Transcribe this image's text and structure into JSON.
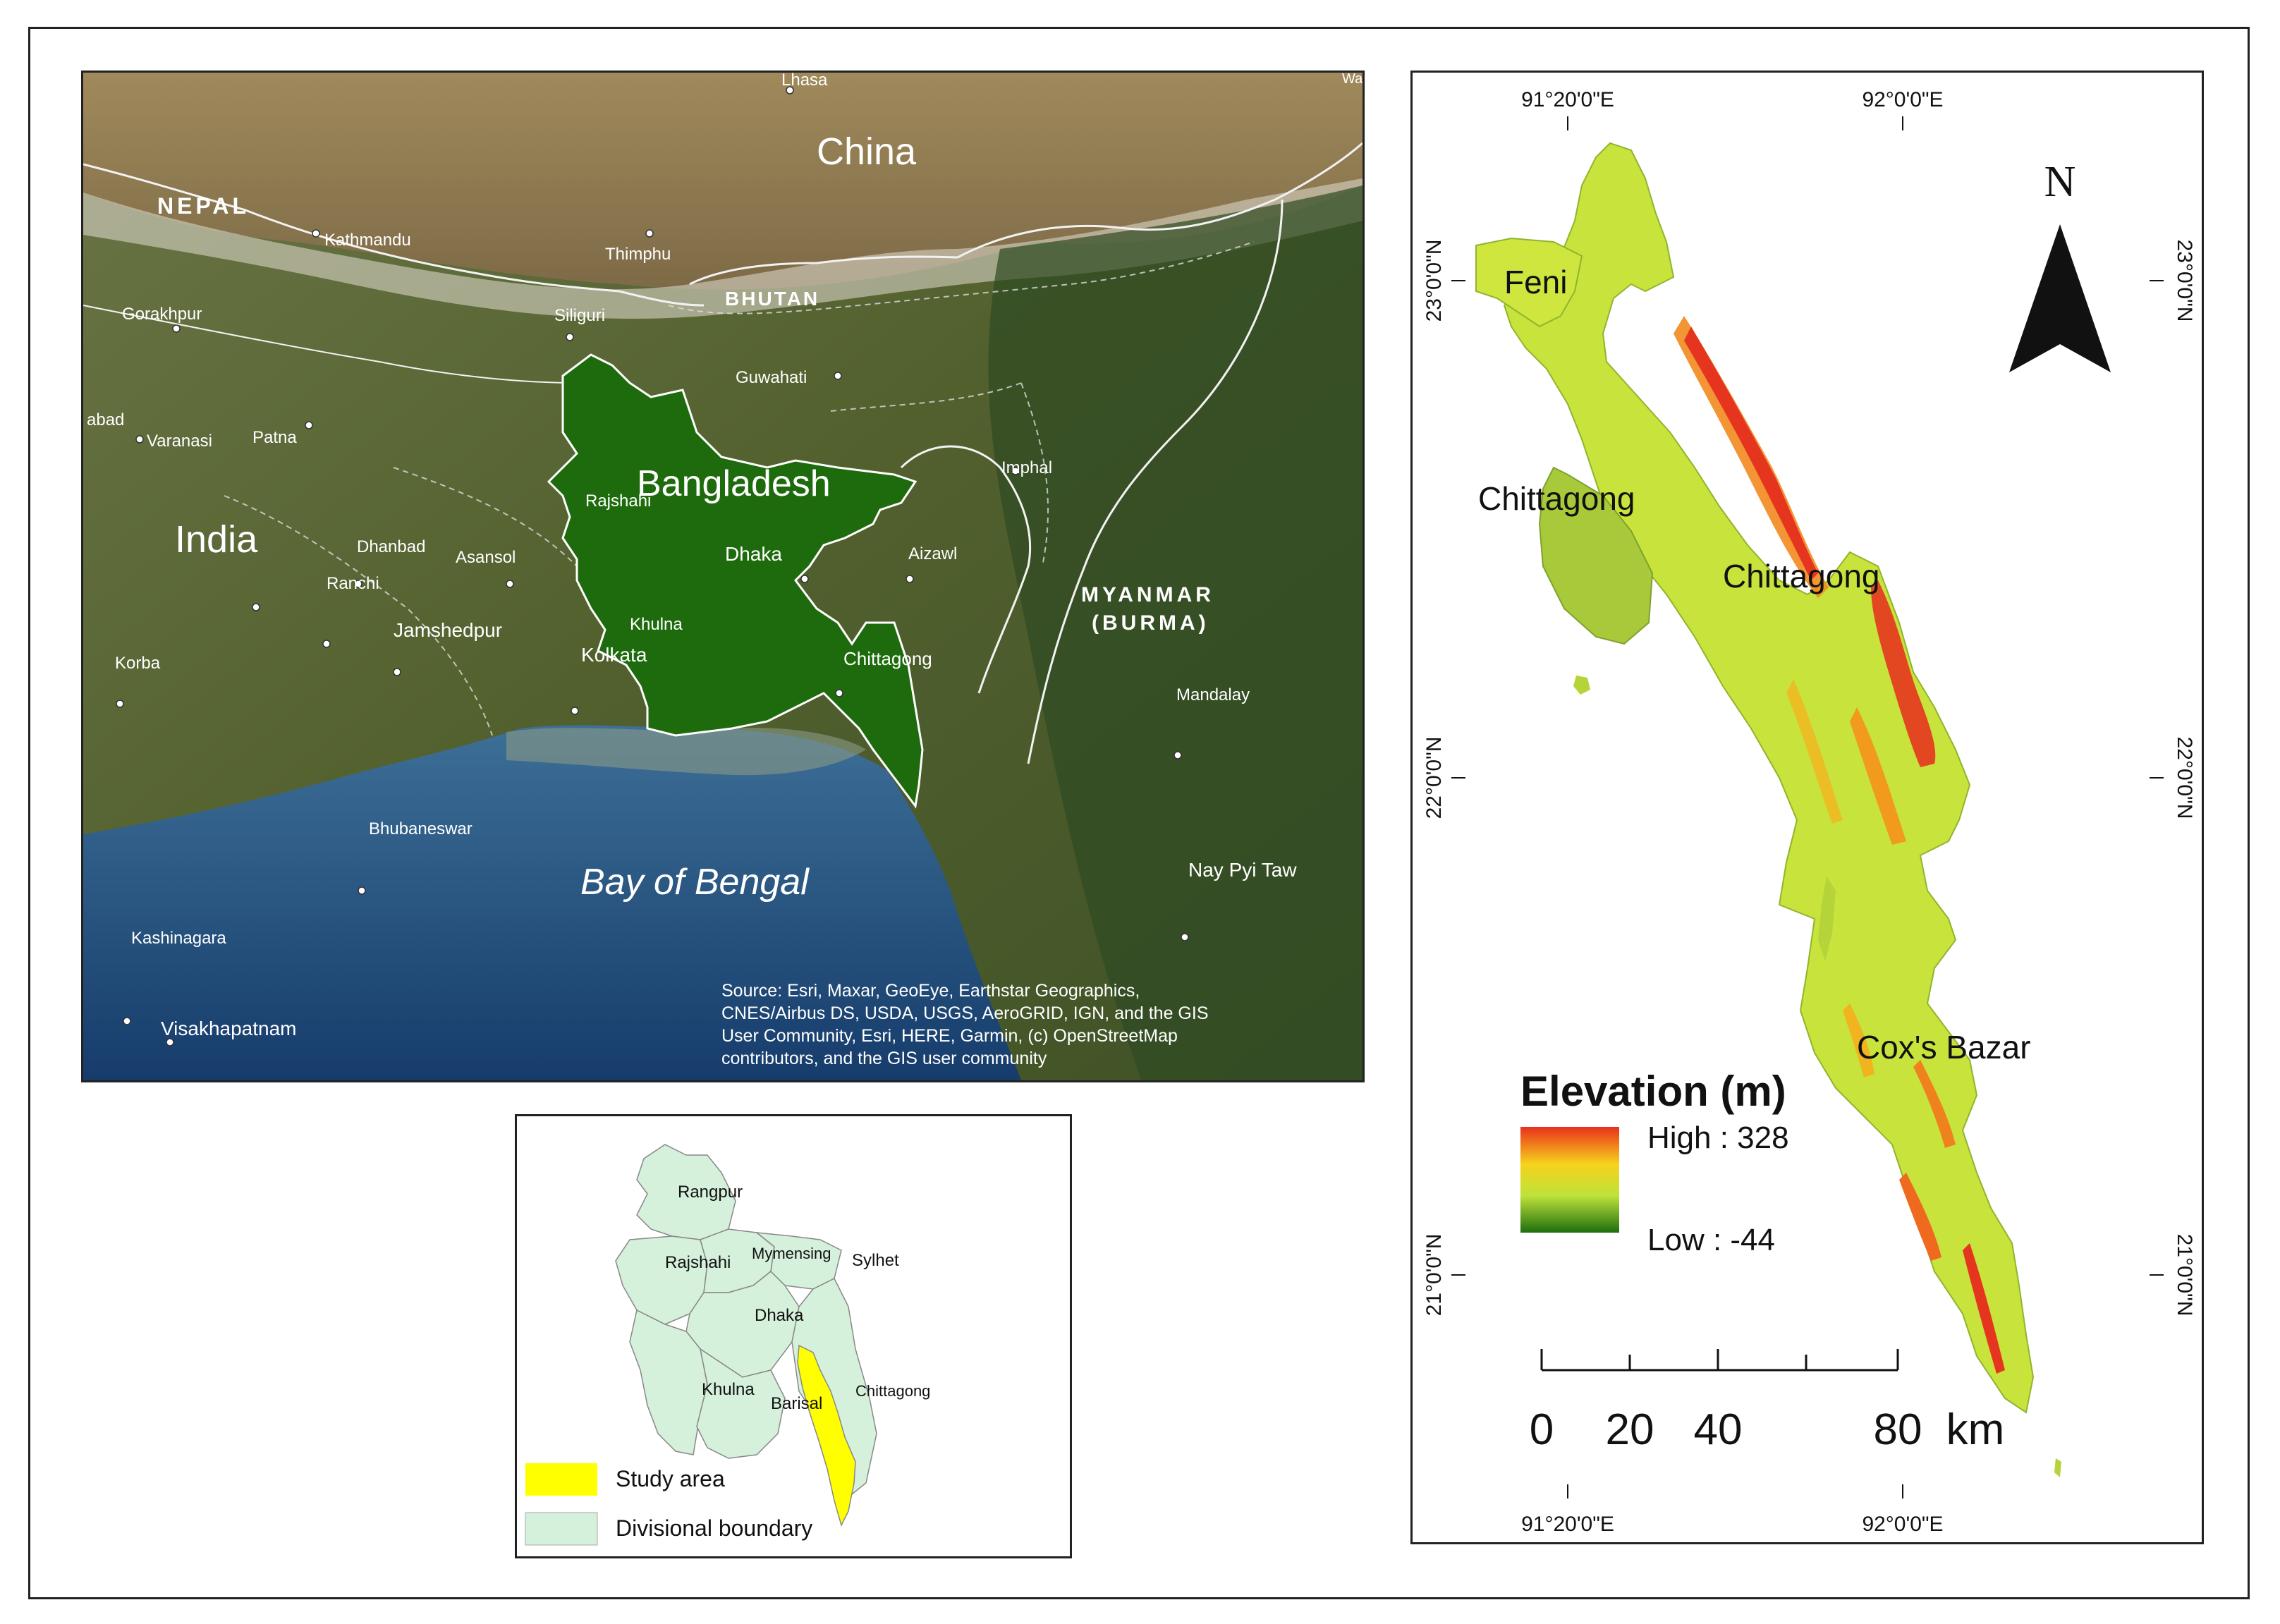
{
  "satellite_map": {
    "countries": {
      "china": "China",
      "nepal": "NEPAL",
      "bhutan": "BHUTAN",
      "bangladesh": "Bangladesh",
      "india": "India",
      "myanmar_line1": "MYANMAR",
      "myanmar_line2": "(BURMA)",
      "bay": "Bay of Bengal"
    },
    "cities": {
      "lhasa": "Lhasa",
      "kathmandu": "Kathmandu",
      "thimphu": "Thimphu",
      "siliguri": "Siliguri",
      "gorakhpur": "Gorakhpur",
      "guwahati": "Guwahati",
      "varanasi": "Varanasi",
      "patna": "Patna",
      "abad": "abad",
      "imphal": "Imphal",
      "rajshahi": "Rajshahi",
      "dhanbad": "Dhanbad",
      "asansol": "Asansol",
      "ranchi": "Ranchi",
      "dhaka": "Dhaka",
      "aizawl": "Aizawl",
      "jamshedpur": "Jamshedpur",
      "khulna": "Khulna",
      "korba": "Korba",
      "kolkata": "Kolkata",
      "chittagong": "Chittagong",
      "mandalay": "Mandalay",
      "bhubaneswar": "Bhubaneswar",
      "nay_pyi_taw": "Nay Pyi Taw",
      "kashinagara": "Kashinagara",
      "visakhapatnam": "Visakhapatnam",
      "wa": "Wa"
    },
    "source": [
      "Source: Esri, Maxar, GeoEye, Earthstar Geographics,",
      "CNES/Airbus DS, USDA, USGS, AeroGRID, IGN, and the GIS",
      "User Community, Esri, HERE, Garmin, (c) OpenStreetMap",
      "contributors, and the GIS user community"
    ]
  },
  "inset_map": {
    "divisions": {
      "rangpur": "Rangpur",
      "rajshahi": "Rajshahi",
      "mymensing": "Mymensing",
      "sylhet": "Sylhet",
      "dhaka": "Dhaka",
      "khulna": "Khulna",
      "barisal": "Barisal",
      "chittagong": "Chittagong"
    },
    "legend": {
      "study_area": "Study area",
      "divisional_boundary": "Divisional boundary"
    },
    "colors": {
      "study_area": "#ffff00",
      "divisional_boundary": "#d5f0db"
    }
  },
  "elevation_map": {
    "graticule": {
      "lon_left": "91°20'0\"E",
      "lon_right": "92°0'0\"E",
      "lat_top": "23°0'0\"N",
      "lat_mid": "22°0'0\"N",
      "lat_bottom": "21°0'0\"N"
    },
    "north_arrow": "N",
    "districts": {
      "feni": "Feni",
      "chittagong_left": "Chittagong",
      "chittagong": "Chittagong",
      "coxs_bazar": "Cox's Bazar"
    },
    "legend": {
      "title": "Elevation (m)",
      "high": "High : 328",
      "low": "Low : -44",
      "colors": [
        "#e8301c",
        "#f7d21c",
        "#bfe23a",
        "#1e6e0e"
      ]
    },
    "scale_bar": {
      "labels": [
        "0",
        "20",
        "40",
        "80"
      ],
      "unit": "km"
    }
  }
}
